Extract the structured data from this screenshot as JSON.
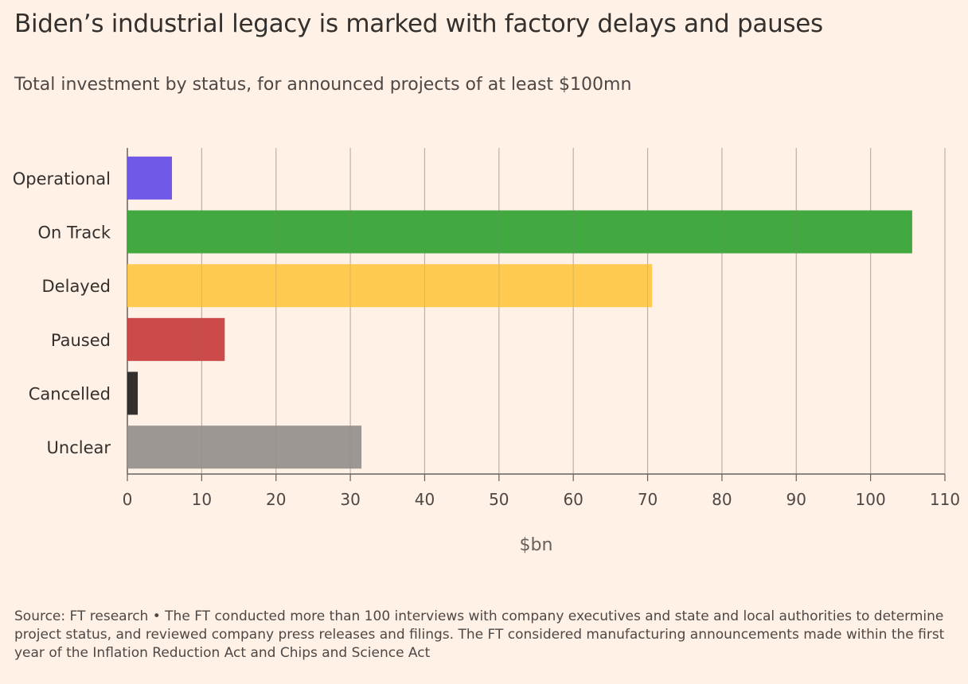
{
  "title": "Biden’s industrial legacy is marked with factory delays and pauses",
  "subtitle": "Total investment by status, for announced projects of at least $100mn",
  "source": "Source: FT research • The FT conducted more than 100 interviews with company executives and state and local authorities to determine project status, and reviewed company press releases and filings. The FT considered manufacturing announcements made within the first year of the Inflation Reduction Act and Chips and Science Act",
  "chart_data": {
    "type": "bar",
    "orientation": "horizontal",
    "categories": [
      "Operational",
      "On Track",
      "Delayed",
      "Paused",
      "Cancelled",
      "Unclear"
    ],
    "values": [
      6,
      105.6,
      70.6,
      13.1,
      1.4,
      31.5
    ],
    "colors": [
      "#6a51e8",
      "#3aa63a",
      "#fec94a",
      "#c94444",
      "#2b2826",
      "#999390"
    ],
    "title": "Biden’s industrial legacy is marked with factory delays and pauses",
    "subtitle": "Total investment by status, for announced projects of at least $100mn",
    "xlabel": "$bn",
    "ylabel": "",
    "xlim": [
      0,
      110
    ],
    "xticks": [
      0,
      10,
      20,
      30,
      40,
      50,
      60,
      70,
      80,
      90,
      100,
      110
    ],
    "grid": true
  }
}
